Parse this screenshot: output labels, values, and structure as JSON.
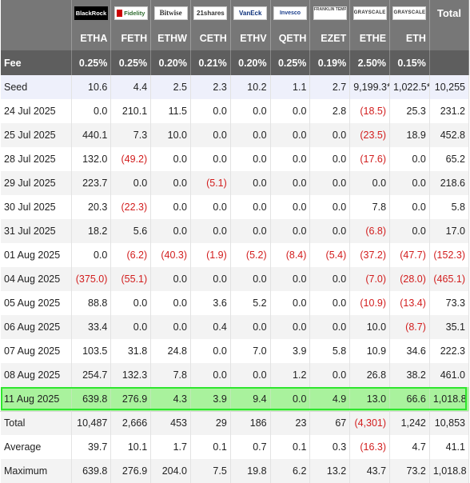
{
  "logos": [
    {
      "name": "blackrock",
      "text": "BlackRock",
      "cls": "bk"
    },
    {
      "name": "fidelity",
      "text": "Fidelity",
      "cls": "fid"
    },
    {
      "name": "bitwise",
      "text": "Bitwise",
      "cls": "bw"
    },
    {
      "name": "21shares",
      "text": "21shares",
      "cls": "sh"
    },
    {
      "name": "vaneck",
      "text": "VanEck",
      "cls": "vk"
    },
    {
      "name": "invesco",
      "text": "Invesco",
      "cls": "iv"
    },
    {
      "name": "franklin",
      "text": "FRANKLIN TEMPLETON",
      "cls": "ft"
    },
    {
      "name": "grayscale-ethe",
      "text": "GRAYSCALE",
      "cls": "gs"
    },
    {
      "name": "grayscale-eth",
      "text": "GRAYSCALE",
      "cls": "gs"
    }
  ],
  "header": {
    "total_label": "Total",
    "tickers": [
      "ETHA",
      "FETH",
      "ETHW",
      "CETH",
      "ETHV",
      "QETH",
      "EZET",
      "ETHE",
      "ETH"
    ],
    "fee_label": "Fee",
    "fees": [
      "0.25%",
      "0.25%",
      "0.20%",
      "0.21%",
      "0.20%",
      "0.25%",
      "0.19%",
      "2.50%",
      "0.15%"
    ]
  },
  "rows": [
    {
      "label": "Seed",
      "cells": [
        "10.6",
        "4.4",
        "2.5",
        "2.3",
        "10.2",
        "1.1",
        "2.7",
        "9,199.3*",
        "1,022.5*",
        "10,255"
      ],
      "neg": [],
      "kind": "seed"
    },
    {
      "label": "24 Jul 2025",
      "cells": [
        "0.0",
        "210.1",
        "11.5",
        "0.0",
        "0.0",
        "0.0",
        "2.8",
        "(18.5)",
        "25.3",
        "231.2"
      ],
      "neg": [
        7
      ]
    },
    {
      "label": "25 Jul 2025",
      "cells": [
        "440.1",
        "7.3",
        "10.0",
        "0.0",
        "0.0",
        "0.0",
        "0.0",
        "(23.5)",
        "18.9",
        "452.8"
      ],
      "neg": [
        7
      ]
    },
    {
      "label": "28 Jul 2025",
      "cells": [
        "132.0",
        "(49.2)",
        "0.0",
        "0.0",
        "0.0",
        "0.0",
        "0.0",
        "(17.6)",
        "0.0",
        "65.2"
      ],
      "neg": [
        1,
        7
      ]
    },
    {
      "label": "29 Jul 2025",
      "cells": [
        "223.7",
        "0.0",
        "0.0",
        "(5.1)",
        "0.0",
        "0.0",
        "0.0",
        "0.0",
        "0.0",
        "218.6"
      ],
      "neg": [
        3
      ]
    },
    {
      "label": "30 Jul 2025",
      "cells": [
        "20.3",
        "(22.3)",
        "0.0",
        "0.0",
        "0.0",
        "0.0",
        "0.0",
        "7.8",
        "0.0",
        "5.8"
      ],
      "neg": [
        1
      ]
    },
    {
      "label": "31 Jul 2025",
      "cells": [
        "18.2",
        "5.6",
        "0.0",
        "0.0",
        "0.0",
        "0.0",
        "0.0",
        "(6.8)",
        "0.0",
        "17.0"
      ],
      "neg": [
        7
      ]
    },
    {
      "label": "01 Aug 2025",
      "cells": [
        "0.0",
        "(6.2)",
        "(40.3)",
        "(1.9)",
        "(5.2)",
        "(8.4)",
        "(5.4)",
        "(37.2)",
        "(47.7)",
        "(152.3)"
      ],
      "neg": [
        1,
        2,
        3,
        4,
        5,
        6,
        7,
        8,
        9
      ]
    },
    {
      "label": "04 Aug 2025",
      "cells": [
        "(375.0)",
        "(55.1)",
        "0.0",
        "0.0",
        "0.0",
        "0.0",
        "0.0",
        "(7.0)",
        "(28.0)",
        "(465.1)"
      ],
      "neg": [
        0,
        1,
        7,
        8,
        9
      ]
    },
    {
      "label": "05 Aug 2025",
      "cells": [
        "88.8",
        "0.0",
        "0.0",
        "3.6",
        "5.2",
        "0.0",
        "0.0",
        "(10.9)",
        "(13.4)",
        "73.3"
      ],
      "neg": [
        7,
        8
      ]
    },
    {
      "label": "06 Aug 2025",
      "cells": [
        "33.4",
        "0.0",
        "0.0",
        "0.4",
        "0.0",
        "0.0",
        "0.0",
        "10.0",
        "(8.7)",
        "35.1"
      ],
      "neg": [
        8
      ]
    },
    {
      "label": "07 Aug 2025",
      "cells": [
        "103.5",
        "31.8",
        "24.8",
        "0.0",
        "7.0",
        "3.9",
        "5.8",
        "10.9",
        "34.6",
        "222.3"
      ],
      "neg": []
    },
    {
      "label": "08 Aug 2025",
      "cells": [
        "254.7",
        "132.3",
        "7.8",
        "0.0",
        "0.0",
        "1.2",
        "0.0",
        "26.8",
        "38.2",
        "461.0"
      ],
      "neg": []
    },
    {
      "label": "11 Aug 2025",
      "cells": [
        "639.8",
        "276.9",
        "4.3",
        "3.9",
        "9.4",
        "0.0",
        "4.9",
        "13.0",
        "66.6",
        "1,018.8"
      ],
      "neg": [],
      "kind": "hl"
    },
    {
      "label": "Total",
      "cells": [
        "10,487",
        "2,666",
        "453",
        "29",
        "186",
        "23",
        "67",
        "(4,301)",
        "1,242",
        "10,853"
      ],
      "neg": [
        7
      ]
    },
    {
      "label": "Average",
      "cells": [
        "39.7",
        "10.1",
        "1.7",
        "0.1",
        "0.7",
        "0.1",
        "0.3",
        "(16.3)",
        "4.7",
        "41.1"
      ],
      "neg": [
        7
      ]
    },
    {
      "label": "Maximum",
      "cells": [
        "639.8",
        "276.9",
        "204.0",
        "7.5",
        "19.8",
        "6.2",
        "13.2",
        "43.7",
        "73.2",
        "1,018.8"
      ],
      "neg": []
    }
  ],
  "colors": {
    "header": "#777777",
    "fee_row": "#5e5e5e",
    "negative": "#d21d1d",
    "highlight": "#a9f29d",
    "highlight_border": "#2ee62e"
  }
}
